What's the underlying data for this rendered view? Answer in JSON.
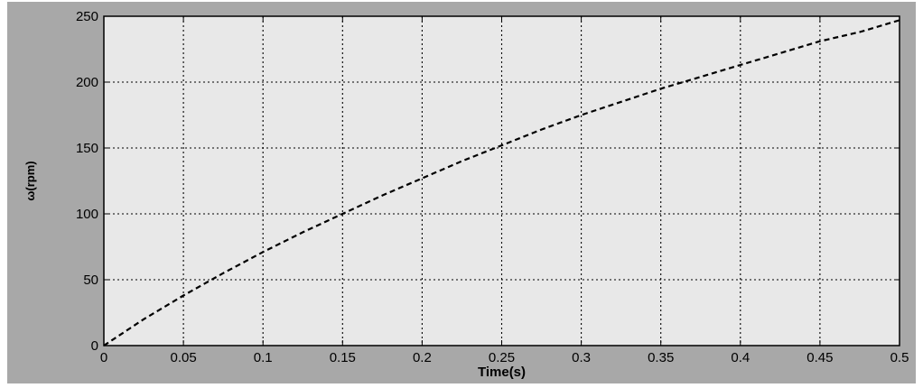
{
  "chart_data": {
    "type": "line",
    "title": "",
    "xlabel": "Time(s)",
    "ylabel": "ω(rpm)",
    "xlim": [
      0,
      0.5
    ],
    "ylim": [
      0,
      250
    ],
    "xticks": [
      0,
      0.05,
      0.1,
      0.15,
      0.2,
      0.25,
      0.3,
      0.35,
      0.4,
      0.45,
      0.5
    ],
    "xtick_labels": [
      "0",
      "0.05",
      "0.1",
      "0.15",
      "0.2",
      "0.25",
      "0.3",
      "0.35",
      "0.4",
      "0.45",
      "0.5"
    ],
    "yticks": [
      0,
      50,
      100,
      150,
      200,
      250
    ],
    "ytick_labels": [
      "0",
      "50",
      "100",
      "150",
      "200",
      "250"
    ],
    "grid": true,
    "grid_style": "dotted",
    "series": [
      {
        "line_style": "dashed",
        "color": "#000000",
        "x": [
          0,
          0.025,
          0.05,
          0.075,
          0.1,
          0.125,
          0.15,
          0.175,
          0.2,
          0.225,
          0.25,
          0.275,
          0.3,
          0.325,
          0.35,
          0.375,
          0.4,
          0.425,
          0.45,
          0.475,
          0.5
        ],
        "y": [
          0,
          20,
          38,
          55,
          71,
          86,
          100,
          114,
          127,
          140,
          152,
          164,
          175,
          185,
          195,
          204,
          213,
          222,
          231,
          238,
          247
        ]
      }
    ]
  },
  "colors": {
    "figure_background": "#a8a8a8",
    "plot_background": "#e8e8e8",
    "axes": "#000000",
    "grid": "#000000"
  }
}
